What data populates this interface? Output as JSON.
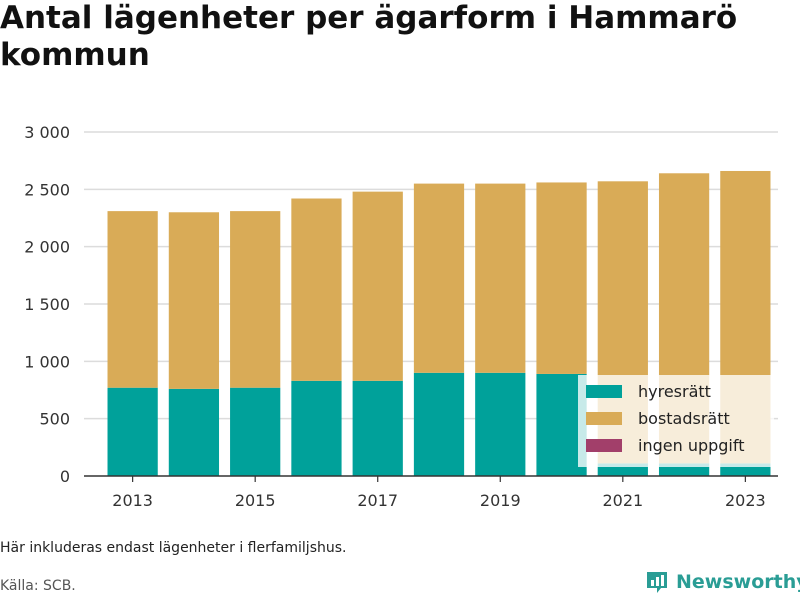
{
  "chart_data": {
    "type": "bar",
    "stacked": true,
    "title": "Antal lägenheter per ägarform i Hammarö kommun",
    "categories": [
      "2013",
      "2014",
      "2015",
      "2016",
      "2017",
      "2018",
      "2019",
      "2020",
      "2021",
      "2022",
      "2023"
    ],
    "xtick_labels": [
      "2013",
      "2015",
      "2017",
      "2019",
      "2021",
      "2023"
    ],
    "ytick_labels": [
      "0",
      "500",
      "1 000",
      "1 500",
      "2 000",
      "2 500",
      "3 000"
    ],
    "ylim": [
      0,
      3000
    ],
    "grid": true,
    "legend_position": "bottom-right",
    "series": [
      {
        "name": "hyresrätt",
        "color": "#00a19a",
        "values": [
          770,
          760,
          770,
          830,
          830,
          900,
          900,
          890,
          110,
          110,
          110
        ]
      },
      {
        "name": "bostadsrätt",
        "color": "#d9ab57",
        "values": [
          1540,
          1540,
          1540,
          1590,
          1650,
          1650,
          1650,
          1670,
          2460,
          2530,
          2550
        ]
      },
      {
        "name": "ingen uppgift",
        "color": "#a23f6a",
        "values": [
          0,
          0,
          0,
          0,
          0,
          0,
          0,
          0,
          0,
          0,
          0
        ]
      }
    ]
  },
  "footnote": "Här inkluderas endast lägenheter i flerfamiljshus.",
  "source": "Källa: SCB.",
  "brand": "Newsworthy",
  "brand_icon": "bar-chart-logo-icon"
}
